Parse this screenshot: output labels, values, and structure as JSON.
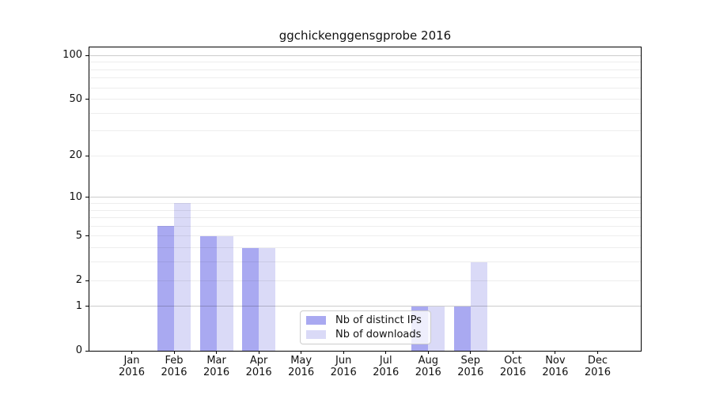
{
  "chart_data": {
    "type": "bar",
    "title": "ggchickenggensgprobe 2016",
    "categories": [
      "Jan",
      "Feb",
      "Mar",
      "Apr",
      "May",
      "Jun",
      "Jul",
      "Aug",
      "Sep",
      "Oct",
      "Nov",
      "Dec"
    ],
    "category_year": "2016",
    "series": [
      {
        "name": "Nb of distinct IPs",
        "color": "#a9a9f1",
        "values": [
          0,
          6,
          5,
          4,
          0,
          0,
          0,
          1,
          1,
          0,
          0,
          0
        ]
      },
      {
        "name": "Nb of downloads",
        "color": "#dadaf7",
        "values": [
          0,
          9,
          5,
          4,
          0,
          0,
          0,
          1,
          3,
          0,
          0,
          0
        ]
      }
    ],
    "y_axis": {
      "scale": "log1p",
      "tick_labels": [
        "100",
        "50",
        "20",
        "10",
        "5",
        "2",
        "1",
        "0"
      ],
      "tick_values": [
        100,
        50,
        20,
        10,
        5,
        2,
        1,
        0
      ],
      "minor_gridlines": [
        2,
        3,
        4,
        5,
        6,
        7,
        8,
        9,
        20,
        30,
        40,
        50,
        60,
        70,
        80,
        90
      ],
      "major_gridlines": [
        1,
        10,
        100
      ],
      "ymin": 0
    },
    "legend_position": "lower center",
    "grid": true
  },
  "colors": {
    "grid_minor": "rgba(0,0,0,0.07)",
    "grid_major": "rgba(0,0,0,0.20)",
    "axis": "#000000"
  }
}
